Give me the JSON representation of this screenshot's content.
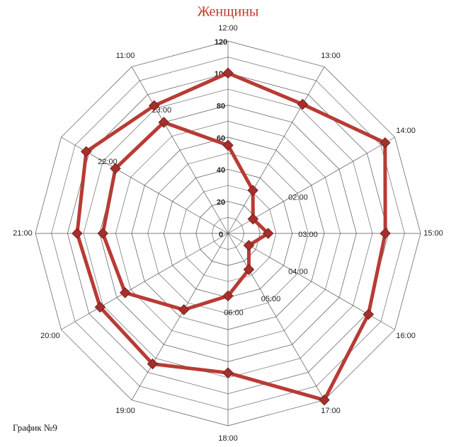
{
  "chart_data": {
    "type": "radar",
    "title": "Женщины",
    "footer": "График №9",
    "categories": [
      "12:00",
      "13:00",
      "14:00",
      "15:00",
      "16:00",
      "17:00",
      "18:00",
      "19:00",
      "20:00",
      "21:00",
      null,
      "11:00"
    ],
    "inner_categories": [
      null,
      null,
      "02:00",
      "03:00",
      "04:00",
      "05:00",
      "06:00",
      null,
      null,
      null,
      "22:00",
      "23:00"
    ],
    "series": [
      {
        "color": "#b83b34",
        "values": [
          100,
          93,
          113,
          98,
          101,
          120,
          87,
          94,
          92,
          94,
          102,
          92
        ]
      },
      {
        "color": "#b83b34",
        "values": [
          55,
          31,
          18,
          25,
          15,
          26,
          39,
          55,
          74,
          78,
          81,
          80
        ]
      }
    ],
    "ylim": [
      0,
      120
    ],
    "yticks": [
      0,
      20,
      40,
      60,
      80,
      100,
      120
    ],
    "minor_yticks": [
      10,
      30,
      50,
      70,
      90,
      110
    ],
    "grid": true
  }
}
